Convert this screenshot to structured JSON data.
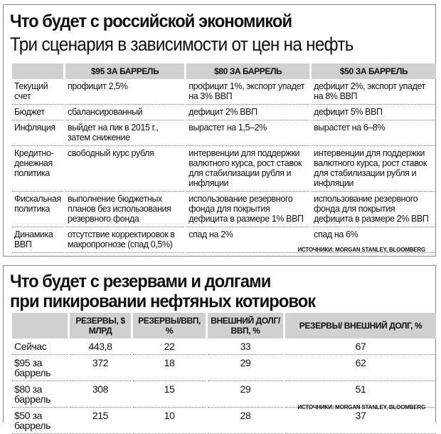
{
  "economy": {
    "title": "Что будет с российской экономикой",
    "subtitle": "Три сценария в зависимости от цен на нефть",
    "headers": [
      "",
      "$95 ЗА БАРРЕЛЬ",
      "$80 ЗА БАРРЕЛЬ",
      "$50 ЗА БАРРЕЛЬ"
    ],
    "rows": [
      [
        "Текущий счет",
        "профицит 2,5%",
        "профицит 1%, экспорт упадет на 3% ВВП",
        "дефицит 2%, экспорт упадет на 8% ВВП"
      ],
      [
        "Бюджет",
        "сбалансированный",
        "дефицит 2% ВВП",
        "дефицит 5% ВВП"
      ],
      [
        "Инфляция",
        "выйдет на пик в 2015 г., затем снижение",
        "вырастет на 1,5–2%",
        "вырастет на 6–8%"
      ],
      [
        "Кредитно-денежная политика",
        "свободный курс рубля",
        "интервенции для поддержки валютного курса, рост ставок для стабилизации рубля и инфляции",
        "интервенции для поддержки валютного курса, рост ставок для стабилизации рубля и инфляции"
      ],
      [
        "Фискальная политика",
        "выполнение бюджетных планов без использования резервного фонда",
        "использование резервного фонда для покрытия дефицита в размере 1% ВВП",
        "использование резервного фонда для покрытия дефицита в размере 2% ВВП"
      ],
      [
        "Динамика ВВП",
        "отсутствие корректировок в макропрогнозе (спад 0,5%)",
        "спад на 2%",
        "спад на 6%"
      ]
    ],
    "source": "ИСТОЧНИКИ: MORGAN STANLEY, BLOOMBERG"
  },
  "reserves": {
    "title_line1": "Что будет с резервами и долгами",
    "title_line2": "при пикировании нефтяных котировок",
    "headers": [
      "",
      "РЕЗЕРВЫ, $ МЛРД",
      "РЕЗЕРВЫ/ВВП, %",
      "ВНЕШНИЙ ДОЛГ/ВВП, %",
      "РЕЗЕРВЫ/ ВНЕШНИЙ ДОЛГ, %"
    ],
    "rows": [
      [
        "Сейчас",
        "443,8",
        "22",
        "33",
        "67"
      ],
      [
        "$95 за баррель",
        "372",
        "18",
        "29",
        "62"
      ],
      [
        "$80 за баррель",
        "308",
        "15",
        "29",
        "51"
      ],
      [
        "$50 за баррель",
        "215",
        "10",
        "28",
        "37"
      ]
    ],
    "source": "ИСТОЧНИКИ: MORGAN STANLEY, BLOOMBERG"
  },
  "colors": {
    "header_bg": "#d0d0d0",
    "border": "#8a8a8a"
  }
}
